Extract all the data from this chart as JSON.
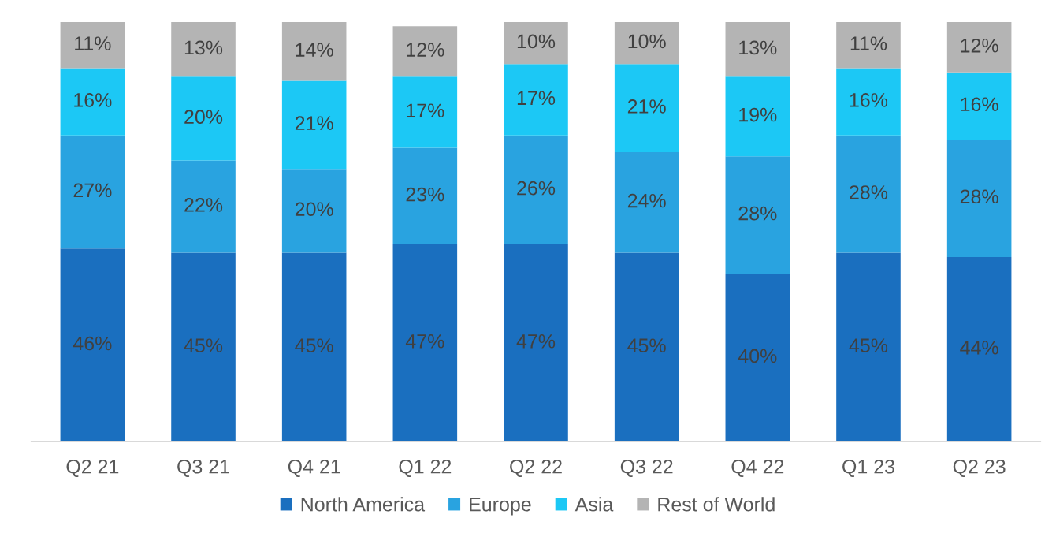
{
  "chart_data": {
    "type": "bar",
    "stacked": true,
    "categories": [
      "Q2 21",
      "Q3 21",
      "Q4 21",
      "Q1 22",
      "Q2 22",
      "Q3 22",
      "Q4 22",
      "Q1 23",
      "Q2 23"
    ],
    "series": [
      {
        "name": "North America",
        "color": "#1a6fbf",
        "values": [
          46,
          45,
          45,
          47,
          47,
          45,
          40,
          45,
          44
        ],
        "value_labels": [
          "46%",
          "45%",
          "45%",
          "47%",
          "47%",
          "45%",
          "40%",
          "45%",
          "44%"
        ]
      },
      {
        "name": "Europe",
        "color": "#29a3e0",
        "values": [
          27,
          22,
          20,
          23,
          26,
          24,
          28,
          28,
          28
        ],
        "value_labels": [
          "27%",
          "22%",
          "20%",
          "23%",
          "26%",
          "24%",
          "28%",
          "28%",
          "28%"
        ]
      },
      {
        "name": "Asia",
        "color": "#1cc8f5",
        "values": [
          16,
          20,
          21,
          17,
          17,
          21,
          19,
          16,
          16
        ],
        "value_labels": [
          "16%",
          "20%",
          "21%",
          "17%",
          "17%",
          "21%",
          "19%",
          "16%",
          "16%"
        ]
      },
      {
        "name": "Rest of World",
        "color": "#b4b4b4",
        "values": [
          11,
          13,
          14,
          12,
          10,
          10,
          13,
          11,
          12
        ],
        "value_labels": [
          "11%",
          "13%",
          "14%",
          "12%",
          "10%",
          "10%",
          "13%",
          "11%",
          "12%"
        ]
      }
    ],
    "ylim": [
      0,
      100
    ],
    "legend": "bottom",
    "grid": false,
    "tick_labels": "x"
  }
}
